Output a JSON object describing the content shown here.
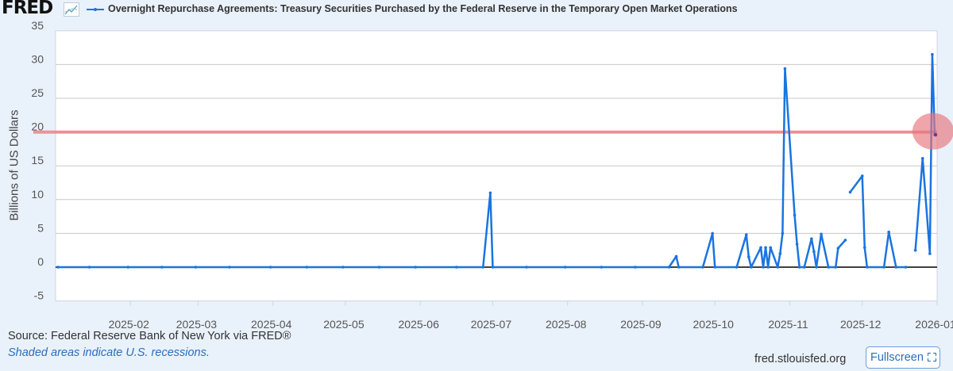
{
  "header": {
    "logo": "FRED",
    "title": "Overnight Repurchase Agreements: Treasury Securities Purchased by the Federal Reserve in the Temporary Open Market Operations",
    "icons": [
      "fred-logo",
      "chart-line-icon",
      "legend-line-marker-icon"
    ]
  },
  "footer": {
    "source": "Source: Federal Reserve Bank of New York via FRED®",
    "recession_note": "Shaded areas indicate U.S. recessions.",
    "site": "fred.stlouisfed.org",
    "fullscreen_label": "Fullscreen",
    "fullscreen_icon": "expand-icon"
  },
  "chart_data": {
    "type": "line",
    "title": "Overnight Repurchase Agreements: Treasury Securities Purchased by the Federal Reserve in the Temporary Open Market Operations",
    "xlabel": "",
    "ylabel": "Billions of US Dollars",
    "xlim": [
      "2025-01-01",
      "2026-01-01"
    ],
    "ylim": [
      -5,
      35
    ],
    "yticks": [
      35,
      30,
      25,
      20,
      15,
      10,
      5,
      0,
      -5
    ],
    "xticks": [
      "2025-02",
      "2025-03",
      "2025-04",
      "2025-05",
      "2025-06",
      "2025-07",
      "2025-08",
      "2025-09",
      "2025-10",
      "2025-11",
      "2025-12",
      "2026-01"
    ],
    "grid": true,
    "series_color": "#1a74e0",
    "points": [
      [
        "2025-01-02",
        0
      ],
      [
        "2025-01-15",
        0
      ],
      [
        "2025-01-31",
        0
      ],
      [
        "2025-02-14",
        0
      ],
      [
        "2025-02-28",
        0
      ],
      [
        "2025-03-14",
        0
      ],
      [
        "2025-03-31",
        0
      ],
      [
        "2025-04-15",
        0
      ],
      [
        "2025-04-30",
        0
      ],
      [
        "2025-05-15",
        0
      ],
      [
        "2025-05-30",
        0
      ],
      [
        "2025-06-16",
        0
      ],
      [
        "2025-06-27",
        0
      ],
      [
        "2025-06-30",
        11.0
      ],
      [
        "2025-07-01",
        0
      ],
      [
        "2025-07-15",
        0
      ],
      [
        "2025-07-31",
        0
      ],
      [
        "2025-08-15",
        0
      ],
      [
        "2025-08-29",
        0
      ],
      [
        "2025-09-12",
        0
      ],
      [
        "2025-09-15",
        1.6
      ],
      [
        "2025-09-16",
        0
      ],
      [
        "2025-09-26",
        0
      ],
      [
        "2025-09-30",
        5.0
      ],
      [
        "2025-10-01",
        0
      ],
      [
        "2025-10-10",
        0
      ],
      [
        "2025-10-14",
        4.8
      ],
      [
        "2025-10-15",
        1.5
      ],
      [
        "2025-10-16",
        0
      ],
      [
        "2025-10-20",
        2.9
      ],
      [
        "2025-10-21",
        0
      ],
      [
        "2025-10-22",
        2.9
      ],
      [
        "2025-10-23",
        0
      ],
      [
        "2025-10-24",
        2.9
      ],
      [
        "2025-10-27",
        0
      ],
      [
        "2025-10-28",
        2.0
      ],
      [
        "2025-10-29",
        5.0
      ],
      [
        "2025-10-30",
        29.4
      ],
      [
        "2025-11-03",
        7.7
      ],
      [
        "2025-11-04",
        3.4
      ],
      [
        "2025-11-05",
        0
      ],
      [
        "2025-11-07",
        0
      ],
      [
        "2025-11-10",
        4.2
      ],
      [
        "2025-11-11",
        2.3
      ],
      [
        "2025-11-12",
        0
      ],
      [
        "2025-11-14",
        4.9
      ],
      [
        "2025-11-17",
        0
      ],
      [
        "2025-11-20",
        0
      ],
      [
        "2025-11-21",
        2.8
      ],
      [
        "2025-11-24",
        4.0
      ],
      [
        "2025-11-25",
        null
      ],
      [
        "2025-11-26",
        11.1
      ],
      [
        "2025-12-01",
        13.5
      ],
      [
        "2025-12-02",
        2.9
      ],
      [
        "2025-12-03",
        0
      ],
      [
        "2025-12-10",
        0
      ],
      [
        "2025-12-12",
        5.2
      ],
      [
        "2025-12-15",
        0
      ],
      [
        "2025-12-19",
        0
      ],
      [
        "2025-12-22",
        null
      ],
      [
        "2025-12-23",
        2.5
      ],
      [
        "2025-12-26",
        16.1
      ],
      [
        "2025-12-29",
        2.0
      ],
      [
        "2025-12-30",
        31.5
      ],
      [
        "2025-12-31",
        19.6
      ]
    ],
    "annotations": [
      {
        "type": "hline",
        "y": 20,
        "color": "#e8747c"
      },
      {
        "type": "circle",
        "x": "2025-12-31",
        "y": 20,
        "color": "#e8747c"
      }
    ]
  }
}
